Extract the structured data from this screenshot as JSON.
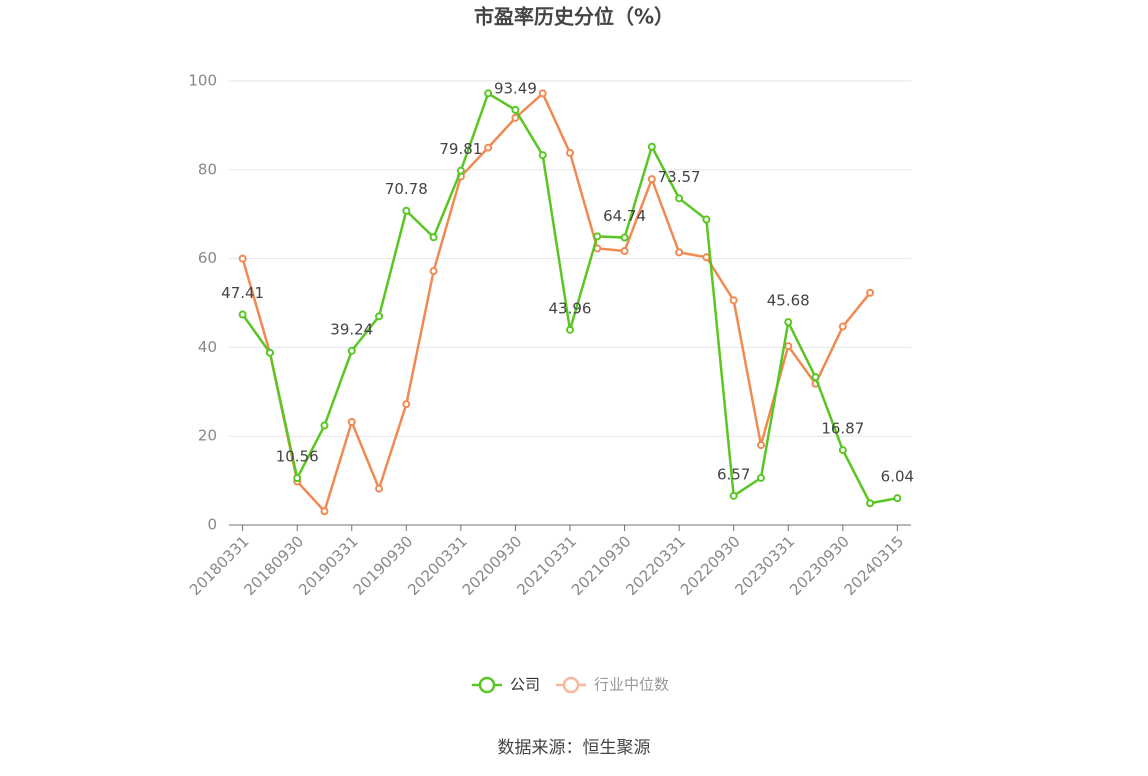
{
  "chart_data": {
    "type": "line",
    "title": "市盈率历史分位（%）",
    "categories": [
      "20180331",
      null,
      "20180930",
      null,
      "20190331",
      null,
      "20190930",
      null,
      "20200331",
      null,
      "20200930",
      null,
      "20210331",
      null,
      "20210930",
      null,
      "20220331",
      null,
      "20220930",
      null,
      "20230331",
      null,
      "20230930",
      null,
      "20240315"
    ],
    "series": [
      {
        "name": "公司",
        "color": "#5ac623",
        "values": [
          47.41,
          38.8,
          10.56,
          22.4,
          39.24,
          47,
          70.78,
          64.8,
          79.81,
          97.2,
          93.49,
          83.3,
          43.96,
          65,
          64.74,
          85.2,
          73.57,
          68.8,
          6.57,
          10.6,
          45.68,
          33.3,
          16.87,
          4.9,
          6.04
        ],
        "value_labels": [
          "47.41",
          null,
          "10.56",
          null,
          "39.24",
          null,
          "70.78",
          null,
          "79.81",
          null,
          "93.49",
          null,
          "43.96",
          null,
          "64.74",
          null,
          "73.57",
          null,
          "6.57",
          null,
          "45.68",
          null,
          "16.87",
          null,
          "6.04"
        ]
      },
      {
        "name": "行业中位数",
        "color": "#f08a52",
        "values": [
          60,
          38.8,
          9.8,
          3.1,
          23.2,
          8.2,
          27.2,
          57.2,
          78.5,
          85,
          91.7,
          97.2,
          83.8,
          62.3,
          61.7,
          77.9,
          61.4,
          60.3,
          50.6,
          18,
          40.3,
          31.8,
          44.7,
          52.3,
          null
        ]
      }
    ],
    "ylim": [
      0,
      100
    ],
    "yticks": [
      0,
      20,
      40,
      60,
      80,
      100
    ],
    "grid": true,
    "legend": "bottom",
    "source": "数据来源：恒生聚源"
  }
}
